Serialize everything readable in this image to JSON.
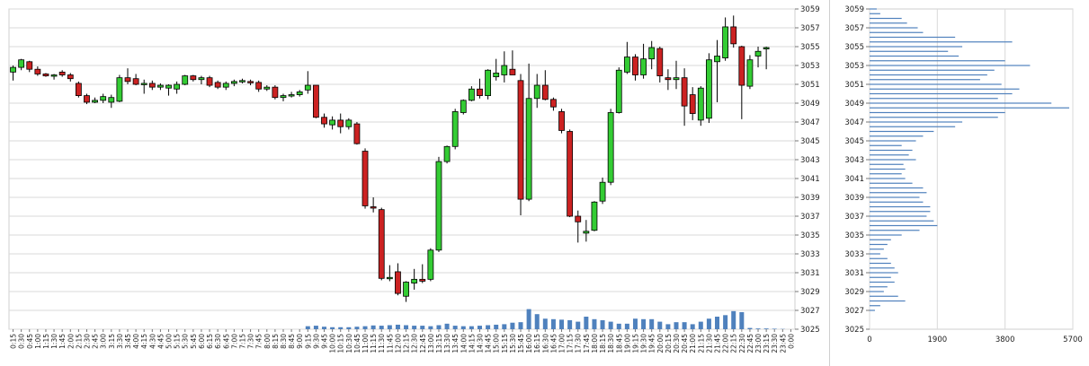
{
  "chart_data": [
    {
      "type": "candlestick",
      "title": "",
      "xlabel": "",
      "ylabel": "",
      "ylim": [
        3025,
        3059
      ],
      "y_ticks": [
        3059,
        3057,
        3055,
        3053,
        3051,
        3049,
        3047,
        3045,
        3043,
        3041,
        3039,
        3037,
        3035,
        3033,
        3031,
        3029,
        3027,
        3025
      ],
      "x_tick_labels": [
        "0:15",
        "0:30",
        "0:45",
        "1:00",
        "1:15",
        "1:30",
        "1:45",
        "2:00",
        "2:15",
        "2:30",
        "2:45",
        "3:00",
        "3:15",
        "3:30",
        "3:45",
        "4:00",
        "4:15",
        "4:30",
        "4:45",
        "5:00",
        "5:15",
        "5:30",
        "5:45",
        "6:00",
        "6:15",
        "6:30",
        "6:45",
        "7:00",
        "7:15",
        "7:30",
        "7:45",
        "8:00",
        "8:15",
        "8:30",
        "8:45",
        "9:00",
        "9:15",
        "9:30",
        "9:45",
        "10:00",
        "10:15",
        "10:30",
        "10:45",
        "11:00",
        "11:15",
        "11:30",
        "11:45",
        "12:00",
        "12:15",
        "12:30",
        "12:45",
        "13:00",
        "13:15",
        "13:30",
        "13:45",
        "14:00",
        "14:15",
        "14:30",
        "14:45",
        "15:00",
        "15:15",
        "15:30",
        "15:45",
        "16:00",
        "16:15",
        "16:30",
        "16:45",
        "17:00",
        "17:15",
        "17:30",
        "17:45",
        "18:00",
        "18:15",
        "18:30",
        "18:45",
        "19:00",
        "19:15",
        "19:30",
        "19:45",
        "20:00",
        "20:15",
        "20:30",
        "20:45",
        "21:00",
        "21:15",
        "21:30",
        "21:45",
        "22:00",
        "22:15",
        "22:30",
        "22:45",
        "23:00",
        "23:15",
        "23:30",
        "23:45",
        "0:00"
      ],
      "grid": true,
      "up_color": "#33cc33",
      "down_color": "#cc2222",
      "volume_color": "#4f81bd",
      "candles": [
        {
          "o": 3052.3,
          "h": 3053.0,
          "l": 3051.4,
          "c": 3052.8
        },
        {
          "o": 3052.8,
          "h": 3053.7,
          "l": 3052.5,
          "c": 3053.6
        },
        {
          "o": 3053.4,
          "h": 3053.5,
          "l": 3052.3,
          "c": 3052.6
        },
        {
          "o": 3052.6,
          "h": 3052.9,
          "l": 3051.9,
          "c": 3052.1
        },
        {
          "o": 3052.1,
          "h": 3052.2,
          "l": 3051.8,
          "c": 3051.9
        },
        {
          "o": 3051.9,
          "h": 3052.1,
          "l": 3051.5,
          "c": 3052.0
        },
        {
          "o": 3052.3,
          "h": 3052.5,
          "l": 3051.8,
          "c": 3052.0
        },
        {
          "o": 3052.0,
          "h": 3052.2,
          "l": 3051.3,
          "c": 3051.6
        },
        {
          "o": 3051.1,
          "h": 3051.3,
          "l": 3049.6,
          "c": 3049.8
        },
        {
          "o": 3049.8,
          "h": 3050.0,
          "l": 3048.9,
          "c": 3049.1
        },
        {
          "o": 3049.1,
          "h": 3049.6,
          "l": 3049.0,
          "c": 3049.3
        },
        {
          "o": 3049.3,
          "h": 3050.0,
          "l": 3049.0,
          "c": 3049.7
        },
        {
          "o": 3049.1,
          "h": 3049.9,
          "l": 3048.5,
          "c": 3049.6
        },
        {
          "o": 3049.2,
          "h": 3052.0,
          "l": 3049.1,
          "c": 3051.7
        },
        {
          "o": 3051.7,
          "h": 3052.7,
          "l": 3051.0,
          "c": 3051.3
        },
        {
          "o": 3051.6,
          "h": 3052.1,
          "l": 3050.9,
          "c": 3051.0
        },
        {
          "o": 3051.0,
          "h": 3051.5,
          "l": 3050.0,
          "c": 3051.1
        },
        {
          "o": 3051.1,
          "h": 3051.4,
          "l": 3050.4,
          "c": 3050.7
        },
        {
          "o": 3050.7,
          "h": 3051.1,
          "l": 3050.4,
          "c": 3050.9
        },
        {
          "o": 3050.6,
          "h": 3051.0,
          "l": 3049.8,
          "c": 3050.9
        },
        {
          "o": 3050.5,
          "h": 3051.3,
          "l": 3050.0,
          "c": 3051.0
        },
        {
          "o": 3051.0,
          "h": 3052.0,
          "l": 3050.9,
          "c": 3051.9
        },
        {
          "o": 3051.9,
          "h": 3052.0,
          "l": 3051.3,
          "c": 3051.5
        },
        {
          "o": 3051.5,
          "h": 3051.9,
          "l": 3051.0,
          "c": 3051.7
        },
        {
          "o": 3051.7,
          "h": 3051.9,
          "l": 3050.7,
          "c": 3050.9
        },
        {
          "o": 3051.2,
          "h": 3051.4,
          "l": 3050.5,
          "c": 3050.7
        },
        {
          "o": 3050.7,
          "h": 3051.3,
          "l": 3050.4,
          "c": 3051.1
        },
        {
          "o": 3051.1,
          "h": 3051.5,
          "l": 3050.8,
          "c": 3051.3
        },
        {
          "o": 3051.3,
          "h": 3051.6,
          "l": 3051.1,
          "c": 3051.4
        },
        {
          "o": 3051.3,
          "h": 3051.5,
          "l": 3050.9,
          "c": 3051.2
        },
        {
          "o": 3051.2,
          "h": 3051.4,
          "l": 3050.2,
          "c": 3050.5
        },
        {
          "o": 3050.5,
          "h": 3050.9,
          "l": 3050.3,
          "c": 3050.7
        },
        {
          "o": 3050.7,
          "h": 3050.9,
          "l": 3049.4,
          "c": 3049.6
        },
        {
          "o": 3049.6,
          "h": 3050.0,
          "l": 3049.2,
          "c": 3049.8
        },
        {
          "o": 3049.8,
          "h": 3050.2,
          "l": 3049.6,
          "c": 3049.9
        },
        {
          "o": 3049.9,
          "h": 3050.4,
          "l": 3049.7,
          "c": 3050.2
        },
        {
          "o": 3050.4,
          "h": 3052.4,
          "l": 3050.0,
          "c": 3050.9
        },
        {
          "o": 3050.9,
          "h": 3050.9,
          "l": 3047.4,
          "c": 3047.5
        },
        {
          "o": 3047.5,
          "h": 3047.9,
          "l": 3046.4,
          "c": 3046.8
        },
        {
          "o": 3046.7,
          "h": 3047.6,
          "l": 3046.2,
          "c": 3047.2
        },
        {
          "o": 3047.2,
          "h": 3047.9,
          "l": 3045.8,
          "c": 3046.5
        },
        {
          "o": 3046.5,
          "h": 3047.4,
          "l": 3046.2,
          "c": 3047.2
        },
        {
          "o": 3046.8,
          "h": 3047.0,
          "l": 3044.6,
          "c": 3044.7
        },
        {
          "o": 3043.9,
          "h": 3044.2,
          "l": 3037.8,
          "c": 3038.1
        },
        {
          "o": 3038.0,
          "h": 3039.0,
          "l": 3037.4,
          "c": 3037.9
        },
        {
          "o": 3037.7,
          "h": 3037.9,
          "l": 3030.2,
          "c": 3030.4
        },
        {
          "o": 3030.4,
          "h": 3031.8,
          "l": 3030.1,
          "c": 3030.5
        },
        {
          "o": 3031.1,
          "h": 3032.0,
          "l": 3028.6,
          "c": 3028.8
        },
        {
          "o": 3028.5,
          "h": 3030.1,
          "l": 3027.9,
          "c": 3030.0
        },
        {
          "o": 3029.9,
          "h": 3031.4,
          "l": 3029.2,
          "c": 3030.3
        },
        {
          "o": 3030.3,
          "h": 3031.9,
          "l": 3029.9,
          "c": 3030.1
        },
        {
          "o": 3030.3,
          "h": 3033.6,
          "l": 3030.1,
          "c": 3033.4
        },
        {
          "o": 3033.4,
          "h": 3043.3,
          "l": 3033.2,
          "c": 3042.8
        },
        {
          "o": 3042.8,
          "h": 3044.5,
          "l": 3042.6,
          "c": 3044.4
        },
        {
          "o": 3044.4,
          "h": 3048.4,
          "l": 3044.1,
          "c": 3048.1
        },
        {
          "o": 3048.0,
          "h": 3049.4,
          "l": 3047.8,
          "c": 3049.3
        },
        {
          "o": 3049.3,
          "h": 3050.8,
          "l": 3049.2,
          "c": 3050.5
        },
        {
          "o": 3050.5,
          "h": 3051.6,
          "l": 3049.5,
          "c": 3049.8
        },
        {
          "o": 3049.8,
          "h": 3052.6,
          "l": 3049.4,
          "c": 3052.5
        },
        {
          "o": 3051.8,
          "h": 3053.7,
          "l": 3051.4,
          "c": 3052.2
        },
        {
          "o": 3052.0,
          "h": 3054.5,
          "l": 3051.2,
          "c": 3053.0
        },
        {
          "o": 3052.6,
          "h": 3054.6,
          "l": 3052.0,
          "c": 3052.0
        },
        {
          "o": 3051.4,
          "h": 3052.1,
          "l": 3037.1,
          "c": 3038.8
        },
        {
          "o": 3038.8,
          "h": 3053.2,
          "l": 3038.6,
          "c": 3049.5
        },
        {
          "o": 3049.5,
          "h": 3052.1,
          "l": 3048.5,
          "c": 3050.9
        },
        {
          "o": 3050.9,
          "h": 3052.5,
          "l": 3049.3,
          "c": 3049.4
        },
        {
          "o": 3049.4,
          "h": 3049.6,
          "l": 3048.2,
          "c": 3048.6
        },
        {
          "o": 3048.1,
          "h": 3048.4,
          "l": 3045.8,
          "c": 3046.1
        },
        {
          "o": 3046.0,
          "h": 3046.2,
          "l": 3036.9,
          "c": 3037.0
        },
        {
          "o": 3037.0,
          "h": 3037.6,
          "l": 3034.2,
          "c": 3036.4
        },
        {
          "o": 3035.2,
          "h": 3036.6,
          "l": 3034.3,
          "c": 3035.4
        },
        {
          "o": 3035.5,
          "h": 3038.6,
          "l": 3035.4,
          "c": 3038.5
        },
        {
          "o": 3038.6,
          "h": 3041.1,
          "l": 3038.3,
          "c": 3040.6
        },
        {
          "o": 3040.6,
          "h": 3048.4,
          "l": 3040.3,
          "c": 3048.0
        },
        {
          "o": 3048.0,
          "h": 3052.8,
          "l": 3047.9,
          "c": 3052.5
        },
        {
          "o": 3052.3,
          "h": 3055.5,
          "l": 3052.1,
          "c": 3053.9
        },
        {
          "o": 3053.9,
          "h": 3054.2,
          "l": 3051.4,
          "c": 3052.0
        },
        {
          "o": 3052.0,
          "h": 3055.3,
          "l": 3051.6,
          "c": 3053.7
        },
        {
          "o": 3053.7,
          "h": 3055.6,
          "l": 3052.6,
          "c": 3054.9
        },
        {
          "o": 3054.8,
          "h": 3055.0,
          "l": 3051.2,
          "c": 3051.9
        },
        {
          "o": 3051.7,
          "h": 3052.6,
          "l": 3050.4,
          "c": 3051.5
        },
        {
          "o": 3051.5,
          "h": 3053.5,
          "l": 3050.5,
          "c": 3051.7
        },
        {
          "o": 3051.7,
          "h": 3052.7,
          "l": 3046.6,
          "c": 3048.7
        },
        {
          "o": 3049.9,
          "h": 3050.7,
          "l": 3047.2,
          "c": 3047.9
        },
        {
          "o": 3047.2,
          "h": 3050.8,
          "l": 3046.6,
          "c": 3050.6
        },
        {
          "o": 3047.4,
          "h": 3054.3,
          "l": 3046.9,
          "c": 3053.6
        },
        {
          "o": 3053.4,
          "h": 3055.7,
          "l": 3049.1,
          "c": 3054.0
        },
        {
          "o": 3053.8,
          "h": 3058.1,
          "l": 3053.5,
          "c": 3057.1
        },
        {
          "o": 3057.1,
          "h": 3058.3,
          "l": 3054.9,
          "c": 3055.3
        },
        {
          "o": 3055.0,
          "h": 3055.1,
          "l": 3047.3,
          "c": 3050.9
        },
        {
          "o": 3050.8,
          "h": 3054.1,
          "l": 3050.5,
          "c": 3053.6
        },
        {
          "o": 3054.0,
          "h": 3055.0,
          "l": 3052.8,
          "c": 3054.5
        },
        {
          "o": 3054.8,
          "h": 3055.0,
          "l": 3052.6,
          "c": 3054.9
        }
      ],
      "volume": [
        0,
        0,
        0,
        0,
        0,
        0,
        0,
        0,
        0,
        0,
        0,
        0,
        0,
        0,
        0,
        0,
        0,
        0,
        0,
        0,
        0,
        0,
        0,
        0,
        0,
        0,
        0,
        0,
        0,
        0,
        0,
        0,
        0,
        0,
        0,
        0,
        0.12,
        0.14,
        0.1,
        0.08,
        0.08,
        0.08,
        0.1,
        0.12,
        0.15,
        0.14,
        0.16,
        0.18,
        0.16,
        0.14,
        0.14,
        0.12,
        0.16,
        0.22,
        0.14,
        0.12,
        0.12,
        0.14,
        0.16,
        0.18,
        0.2,
        0.26,
        0.28,
        0.8,
        0.6,
        0.42,
        0.4,
        0.38,
        0.36,
        0.3,
        0.5,
        0.4,
        0.36,
        0.3,
        0.22,
        0.22,
        0.42,
        0.4,
        0.4,
        0.3,
        0.2,
        0.28,
        0.28,
        0.2,
        0.3,
        0.42,
        0.5,
        0.56,
        0.72,
        0.68,
        0.05,
        0.03,
        0.03,
        0.02,
        0.01,
        0
      ]
    },
    {
      "type": "bar",
      "orientation": "horizontal",
      "title": "",
      "ylim": [
        3025,
        3059
      ],
      "y_ticks": [
        3059,
        3057,
        3055,
        3053,
        3051,
        3049,
        3047,
        3045,
        3043,
        3041,
        3039,
        3037,
        3035,
        3033,
        3031,
        3029,
        3027,
        3025
      ],
      "x_ticks": [
        0,
        1900,
        3800,
        5700
      ],
      "xlim": [
        0,
        5700
      ],
      "grid": true,
      "bar_color": "#4f81bd",
      "profile": [
        {
          "price": 3059.0,
          "value": 200
        },
        {
          "price": 3058.5,
          "value": 300
        },
        {
          "price": 3058.0,
          "value": 900
        },
        {
          "price": 3057.5,
          "value": 1050
        },
        {
          "price": 3057.0,
          "value": 1350
        },
        {
          "price": 3056.5,
          "value": 1500
        },
        {
          "price": 3056.0,
          "value": 2400
        },
        {
          "price": 3055.5,
          "value": 4000
        },
        {
          "price": 3055.0,
          "value": 2600
        },
        {
          "price": 3054.5,
          "value": 2200
        },
        {
          "price": 3054.0,
          "value": 2500
        },
        {
          "price": 3053.5,
          "value": 3800
        },
        {
          "price": 3053.0,
          "value": 4500
        },
        {
          "price": 3052.5,
          "value": 3500
        },
        {
          "price": 3052.0,
          "value": 3300
        },
        {
          "price": 3051.5,
          "value": 3100
        },
        {
          "price": 3051.0,
          "value": 3700
        },
        {
          "price": 3050.5,
          "value": 4200
        },
        {
          "price": 3050.0,
          "value": 4000
        },
        {
          "price": 3049.5,
          "value": 3600
        },
        {
          "price": 3049.0,
          "value": 5100
        },
        {
          "price": 3048.5,
          "value": 5600
        },
        {
          "price": 3048.0,
          "value": 3800
        },
        {
          "price": 3047.5,
          "value": 3600
        },
        {
          "price": 3047.0,
          "value": 2600
        },
        {
          "price": 3046.5,
          "value": 2400
        },
        {
          "price": 3046.0,
          "value": 1800
        },
        {
          "price": 3045.5,
          "value": 1500
        },
        {
          "price": 3045.0,
          "value": 1300
        },
        {
          "price": 3044.5,
          "value": 900
        },
        {
          "price": 3044.0,
          "value": 1200
        },
        {
          "price": 3043.5,
          "value": 1100
        },
        {
          "price": 3043.0,
          "value": 1300
        },
        {
          "price": 3042.5,
          "value": 950
        },
        {
          "price": 3042.0,
          "value": 1000
        },
        {
          "price": 3041.5,
          "value": 900
        },
        {
          "price": 3041.0,
          "value": 1000
        },
        {
          "price": 3040.5,
          "value": 1200
        },
        {
          "price": 3040.0,
          "value": 1500
        },
        {
          "price": 3039.5,
          "value": 1600
        },
        {
          "price": 3039.0,
          "value": 1400
        },
        {
          "price": 3038.5,
          "value": 1500
        },
        {
          "price": 3038.0,
          "value": 1700
        },
        {
          "price": 3037.5,
          "value": 1700
        },
        {
          "price": 3037.0,
          "value": 1600
        },
        {
          "price": 3036.5,
          "value": 1800
        },
        {
          "price": 3036.0,
          "value": 1900
        },
        {
          "price": 3035.5,
          "value": 1400
        },
        {
          "price": 3035.0,
          "value": 900
        },
        {
          "price": 3034.5,
          "value": 600
        },
        {
          "price": 3034.0,
          "value": 500
        },
        {
          "price": 3033.5,
          "value": 400
        },
        {
          "price": 3033.0,
          "value": 300
        },
        {
          "price": 3032.5,
          "value": 500
        },
        {
          "price": 3032.0,
          "value": 600
        },
        {
          "price": 3031.5,
          "value": 700
        },
        {
          "price": 3031.0,
          "value": 800
        },
        {
          "price": 3030.5,
          "value": 600
        },
        {
          "price": 3030.0,
          "value": 700
        },
        {
          "price": 3029.5,
          "value": 500
        },
        {
          "price": 3029.0,
          "value": 400
        },
        {
          "price": 3028.5,
          "value": 800
        },
        {
          "price": 3028.0,
          "value": 1000
        },
        {
          "price": 3027.5,
          "value": 300
        },
        {
          "price": 3027.0,
          "value": 150
        }
      ]
    }
  ]
}
